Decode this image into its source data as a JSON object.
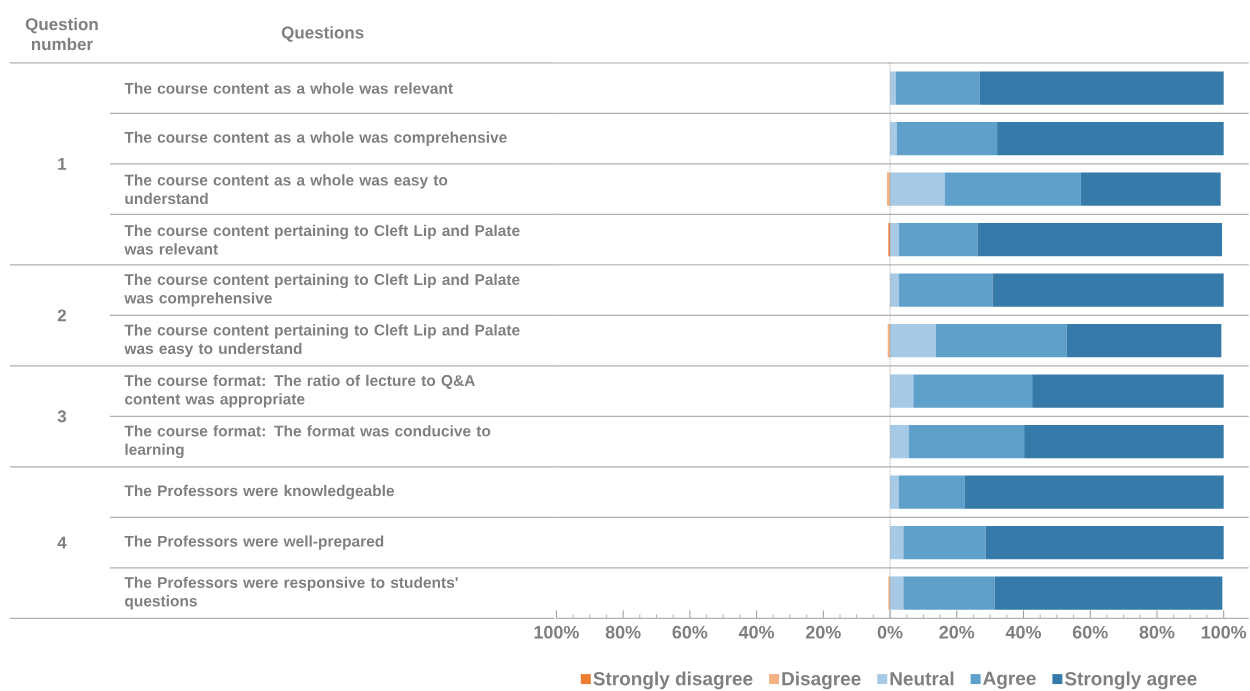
{
  "chart_data": {
    "type": "bar",
    "orientation": "horizontal",
    "stacked": true,
    "categories": [
      "The course content as a whole was relevant",
      "The course content as a whole was comprehensive",
      "The course content as a whole was easy to understand",
      "The course content pertaining to Cleft Lip and Palate was relevant",
      "The course content pertaining to Cleft Lip and Palate was comprehensive",
      "The course content pertaining to Cleft Lip and Palate was easy to understand",
      "The course format: The ratio of lecture to Q&A content was appropriate",
      "The course format: The format was conducive to learning",
      "The Professors were knowledgeable",
      "The Professors were well-prepared",
      "The Professors were responsive to students' questions"
    ],
    "series": [
      {
        "name": "Strongly disagree",
        "color": "#ed7d31",
        "values": [
          null,
          null,
          null,
          -0.5,
          null,
          null,
          null,
          null,
          null,
          null,
          null
        ]
      },
      {
        "name": "Disagree",
        "color": "#f4b183",
        "values": [
          null,
          null,
          -0.9,
          null,
          null,
          -0.7,
          null,
          null,
          null,
          null,
          -0.5
        ]
      },
      {
        "name": "Neutral",
        "color": "#a6cae5",
        "values": [
          1.7,
          2.0,
          16.4,
          2.7,
          2.7,
          13.7,
          7.0,
          5.6,
          2.6,
          4.0,
          4.0
        ]
      },
      {
        "name": "Agree",
        "color": "#5fa0cb",
        "values": [
          25.1,
          30.1,
          40.8,
          23.5,
          28.0,
          39.2,
          35.6,
          34.6,
          19.7,
          24.7,
          27.4
        ]
      },
      {
        "name": "Strongly agree",
        "color": "#357aa9",
        "values": [
          73.2,
          67.9,
          41.9,
          73.3,
          69.3,
          46.4,
          57.4,
          59.8,
          77.7,
          71.3,
          68.2
        ]
      }
    ],
    "xlim": [
      -100,
      100
    ],
    "xticks": [
      {
        "value": -100,
        "label": "100%"
      },
      {
        "value": -80,
        "label": "80%"
      },
      {
        "value": -60,
        "label": "60%"
      },
      {
        "value": -40,
        "label": "40%"
      },
      {
        "value": -20,
        "label": "20%"
      },
      {
        "value": 0,
        "label": "0%"
      },
      {
        "value": 20,
        "label": "20%"
      },
      {
        "value": 40,
        "label": "40%"
      },
      {
        "value": 60,
        "label": "60%"
      },
      {
        "value": 80,
        "label": "80%"
      },
      {
        "value": 100,
        "label": "100%"
      }
    ],
    "ref_lines": [
      {
        "axis": "x",
        "value": 0,
        "color": "#9a9a9a",
        "line_style": "dotted"
      }
    ],
    "legend": "bottom",
    "annotations": [
      "Question number",
      "Questions",
      "1",
      "2",
      "3",
      "4"
    ]
  }
}
